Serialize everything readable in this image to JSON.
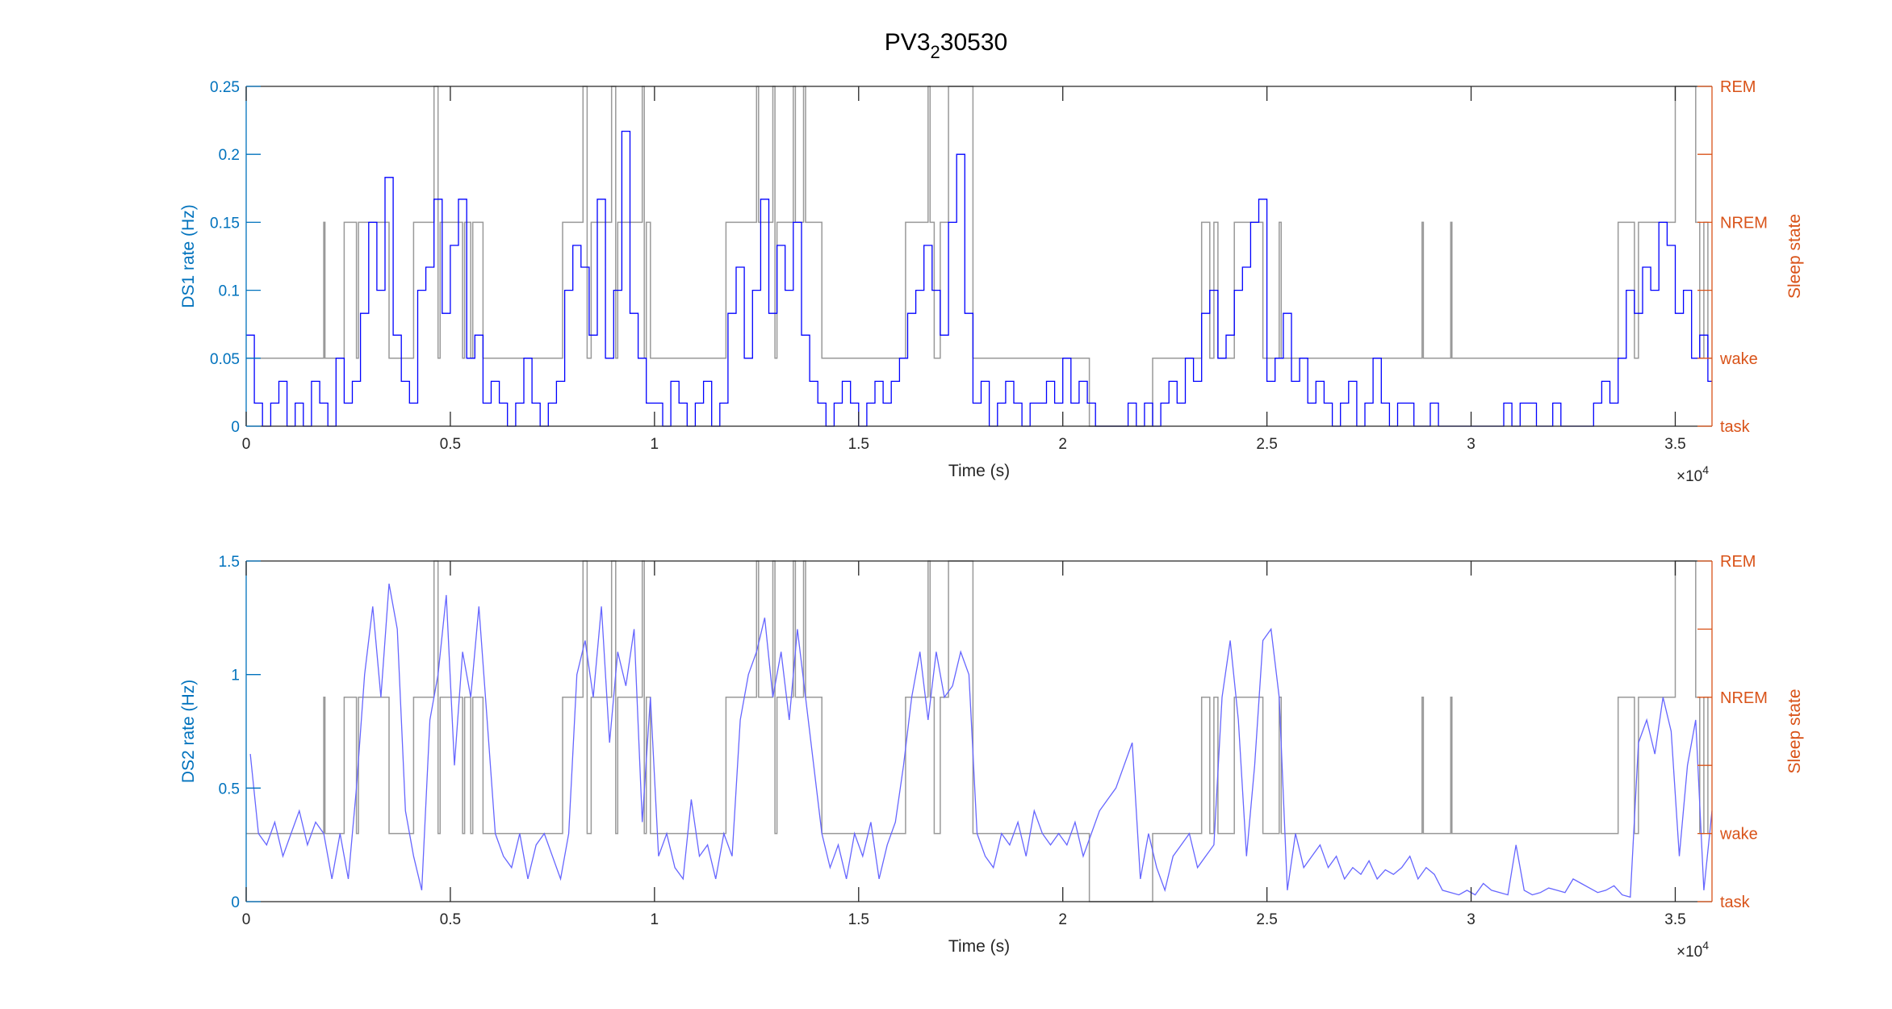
{
  "figure": {
    "title_parts": {
      "base": "PV3",
      "sub": "2",
      "rest": "30530"
    },
    "colors": {
      "left_axis": "#0072BD",
      "right_axis": "#D95319",
      "ds1_line": "#0000FF",
      "ds2_line": "#6666FF",
      "state_line": "#999999",
      "axis": "#262626"
    }
  },
  "chart_data": [
    {
      "type": "line",
      "name": "DS1",
      "xlabel": "Time (s)",
      "x_exponent_label": "×10",
      "x_exponent": "4",
      "ylabel": "DS1 rate (Hz)",
      "ylabel_right": "Sleep state",
      "xlim": [
        0,
        35900
      ],
      "ylim": [
        0,
        0.25
      ],
      "xticks": [
        0,
        5000,
        10000,
        15000,
        20000,
        25000,
        30000,
        35000
      ],
      "xticklabels": [
        "0",
        "0.5",
        "1",
        "1.5",
        "2",
        "2.5",
        "3",
        "3.5"
      ],
      "yticks": [
        0,
        0.05,
        0.1,
        0.15,
        0.2,
        0.25
      ],
      "yticklabels": [
        "0",
        "0.05",
        "0.1",
        "0.15",
        "0.2",
        "0.25"
      ],
      "x_step": 200,
      "values": [
        0.067,
        0.017,
        0,
        0.017,
        0.033,
        0,
        0.017,
        0,
        0.033,
        0.017,
        0,
        0.05,
        0.017,
        0.033,
        0.083,
        0.15,
        0.1,
        0.183,
        0.067,
        0.033,
        0.017,
        0.1,
        0.117,
        0.167,
        0.083,
        0.133,
        0.167,
        0.05,
        0.067,
        0.017,
        0.033,
        0.017,
        0,
        0.017,
        0.05,
        0.017,
        0,
        0.017,
        0.033,
        0.1,
        0.133,
        0.117,
        0.067,
        0.167,
        0.05,
        0.1,
        0.217,
        0.083,
        0.05,
        0.017,
        0.017,
        0,
        0.033,
        0.017,
        0,
        0.017,
        0.033,
        0,
        0.017,
        0.083,
        0.117,
        0.05,
        0.1,
        0.167,
        0.083,
        0.133,
        0.1,
        0.15,
        0.067,
        0.033,
        0.017,
        0,
        0.017,
        0.033,
        0.017,
        0,
        0.017,
        0.033,
        0.017,
        0.033,
        0.05,
        0.083,
        0.1,
        0.133,
        0.1,
        0.067,
        0.15,
        0.2,
        0.083,
        0.017,
        0.033,
        0,
        0.017,
        0.033,
        0.017,
        0,
        0.017,
        0.017,
        0.033,
        0.017,
        0.05,
        0.017,
        0.033,
        0.017,
        0,
        0,
        0,
        0,
        0.017,
        0,
        0.017,
        0,
        0.017,
        0.033,
        0.017,
        0.05,
        0.033,
        0.083,
        0.1,
        0.05,
        0.067,
        0.1,
        0.117,
        0.15,
        0.167,
        0.033,
        0.05,
        0.083,
        0.033,
        0.05,
        0.017,
        0.033,
        0.017,
        0,
        0.017,
        0.033,
        0,
        0.017,
        0.05,
        0.017,
        0,
        0.017,
        0.017,
        0,
        0,
        0.017,
        0,
        0,
        0,
        0,
        0,
        0,
        0,
        0,
        0.017,
        0,
        0.017,
        0.017,
        0,
        0,
        0.017,
        0,
        0,
        0,
        0,
        0.017,
        0.033,
        0.017,
        0.05,
        0.1,
        0.083,
        0.117,
        0.1,
        0.15,
        0.133,
        0.083,
        0.1,
        0.05,
        0.067,
        0.033
      ]
    },
    {
      "type": "line",
      "name": "DS2",
      "xlabel": "Time (s)",
      "x_exponent_label": "×10",
      "x_exponent": "4",
      "ylabel": "DS2 rate (Hz)",
      "ylabel_right": "Sleep state",
      "xlim": [
        0,
        35900
      ],
      "ylim": [
        0,
        1.5
      ],
      "xticks": [
        0,
        5000,
        10000,
        15000,
        20000,
        25000,
        30000,
        35000
      ],
      "xticklabels": [
        "0",
        "0.5",
        "1",
        "1.5",
        "2",
        "2.5",
        "3",
        "3.5"
      ],
      "yticks": [
        0,
        0.5,
        1,
        1.5
      ],
      "yticklabels": [
        "0",
        "0.5",
        "1",
        "1.5"
      ],
      "x_step": 200,
      "values": [
        0.65,
        0.3,
        0.25,
        0.35,
        0.2,
        0.3,
        0.4,
        0.25,
        0.35,
        0.3,
        0.1,
        0.3,
        0.1,
        0.5,
        1.0,
        1.3,
        0.9,
        1.4,
        1.2,
        0.4,
        0.2,
        0.05,
        0.8,
        1.0,
        1.35,
        0.6,
        1.1,
        0.9,
        1.3,
        0.8,
        0.3,
        0.2,
        0.15,
        0.3,
        0.1,
        0.25,
        0.3,
        0.2,
        0.1,
        0.3,
        1.0,
        1.15,
        0.9,
        1.3,
        0.7,
        1.1,
        0.95,
        1.2,
        0.35,
        0.9,
        0.2,
        0.3,
        0.15,
        0.1,
        0.45,
        0.2,
        0.25,
        0.1,
        0.3,
        0.2,
        0.8,
        1.0,
        1.1,
        1.25,
        0.9,
        1.1,
        0.8,
        1.2,
        0.9,
        0.6,
        0.3,
        0.15,
        0.25,
        0.1,
        0.3,
        0.2,
        0.35,
        0.1,
        0.25,
        0.35,
        0.6,
        0.9,
        1.1,
        0.8,
        1.1,
        0.9,
        0.95,
        1.1,
        1.0,
        0.3,
        0.2,
        0.15,
        0.3,
        0.25,
        0.35,
        0.2,
        0.4,
        0.3,
        0.25,
        0.3,
        0.25,
        0.35,
        0.2,
        0.3,
        0.4,
        0.45,
        0.5,
        0.6,
        0.7,
        0.1,
        0.3,
        0.15,
        0.05,
        0.2,
        0.25,
        0.3,
        0.15,
        0.2,
        0.25,
        0.9,
        1.15,
        0.8,
        0.2,
        0.6,
        1.15,
        1.2,
        0.9,
        0.05,
        0.3,
        0.15,
        0.2,
        0.25,
        0.15,
        0.2,
        0.1,
        0.15,
        0.12,
        0.18,
        0.1,
        0.14,
        0.12,
        0.15,
        0.2,
        0.1,
        0.15,
        0.12,
        0.05,
        0.04,
        0.03,
        0.05,
        0.03,
        0.08,
        0.05,
        0.04,
        0.03,
        0.25,
        0.05,
        0.03,
        0.04,
        0.06,
        0.05,
        0.04,
        0.1,
        0.08,
        0.06,
        0.04,
        0.05,
        0.07,
        0.03,
        0.02,
        0.7,
        0.8,
        0.65,
        0.9,
        0.75,
        0.2,
        0.6,
        0.8,
        0.05,
        0.4
      ]
    }
  ],
  "sleep_state": {
    "ylim": [
      0,
      5
    ],
    "ticks": [
      0,
      1,
      2,
      3,
      4,
      5
    ],
    "ticklabels": [
      "task",
      "wake",
      "",
      "NREM",
      "",
      "REM"
    ],
    "state_levels": {
      "task": 0,
      "wake": 1,
      "NREM": 3,
      "REM": 5
    },
    "segments": [
      [
        0,
        1900,
        "wake"
      ],
      [
        1900,
        1930,
        "NREM"
      ],
      [
        1930,
        2400,
        "wake"
      ],
      [
        2400,
        2700,
        "NREM"
      ],
      [
        2700,
        2750,
        "wake"
      ],
      [
        2750,
        3500,
        "NREM"
      ],
      [
        3500,
        4100,
        "wake"
      ],
      [
        4100,
        4600,
        "NREM"
      ],
      [
        4600,
        4700,
        "REM"
      ],
      [
        4700,
        4750,
        "wake"
      ],
      [
        4750,
        5300,
        "NREM"
      ],
      [
        5300,
        5350,
        "wake"
      ],
      [
        5350,
        5500,
        "NREM"
      ],
      [
        5500,
        5550,
        "wake"
      ],
      [
        5550,
        5800,
        "NREM"
      ],
      [
        5800,
        7750,
        "wake"
      ],
      [
        7750,
        8250,
        "NREM"
      ],
      [
        8250,
        8350,
        "REM"
      ],
      [
        8350,
        8450,
        "wake"
      ],
      [
        8450,
        8950,
        "NREM"
      ],
      [
        8950,
        9050,
        "REM"
      ],
      [
        9050,
        9100,
        "wake"
      ],
      [
        9100,
        9700,
        "NREM"
      ],
      [
        9700,
        9750,
        "REM"
      ],
      [
        9750,
        9800,
        "wake"
      ],
      [
        9800,
        9900,
        "NREM"
      ],
      [
        9900,
        11750,
        "wake"
      ],
      [
        11750,
        12500,
        "NREM"
      ],
      [
        12500,
        12550,
        "REM"
      ],
      [
        12550,
        12900,
        "NREM"
      ],
      [
        12900,
        12950,
        "REM"
      ],
      [
        12950,
        13000,
        "wake"
      ],
      [
        13000,
        13400,
        "NREM"
      ],
      [
        13400,
        13450,
        "REM"
      ],
      [
        13450,
        13650,
        "NREM"
      ],
      [
        13650,
        13700,
        "REM"
      ],
      [
        13700,
        14100,
        "NREM"
      ],
      [
        14100,
        16150,
        "wake"
      ],
      [
        16150,
        16700,
        "NREM"
      ],
      [
        16700,
        16750,
        "REM"
      ],
      [
        16750,
        16850,
        "NREM"
      ],
      [
        16850,
        17000,
        "wake"
      ],
      [
        17000,
        17200,
        "NREM"
      ],
      [
        17200,
        17800,
        "REM"
      ],
      [
        17800,
        20650,
        "wake"
      ],
      [
        20650,
        22200,
        "task"
      ],
      [
        22200,
        23400,
        "wake"
      ],
      [
        23400,
        23600,
        "NREM"
      ],
      [
        23600,
        23700,
        "wake"
      ],
      [
        23700,
        23800,
        "NREM"
      ],
      [
        23800,
        24200,
        "wake"
      ],
      [
        24200,
        24900,
        "NREM"
      ],
      [
        24900,
        25300,
        "wake"
      ],
      [
        25300,
        25350,
        "NREM"
      ],
      [
        25350,
        28800,
        "wake"
      ],
      [
        28800,
        28830,
        "NREM"
      ],
      [
        28830,
        29500,
        "wake"
      ],
      [
        29500,
        29530,
        "NREM"
      ],
      [
        29530,
        33600,
        "wake"
      ],
      [
        33600,
        34000,
        "NREM"
      ],
      [
        34000,
        34100,
        "wake"
      ],
      [
        34100,
        35000,
        "NREM"
      ],
      [
        35000,
        35500,
        "REM"
      ],
      [
        35500,
        35600,
        "NREM"
      ],
      [
        35600,
        35700,
        "wake"
      ],
      [
        35700,
        35800,
        "NREM"
      ],
      [
        35800,
        35900,
        "wake"
      ]
    ]
  }
}
